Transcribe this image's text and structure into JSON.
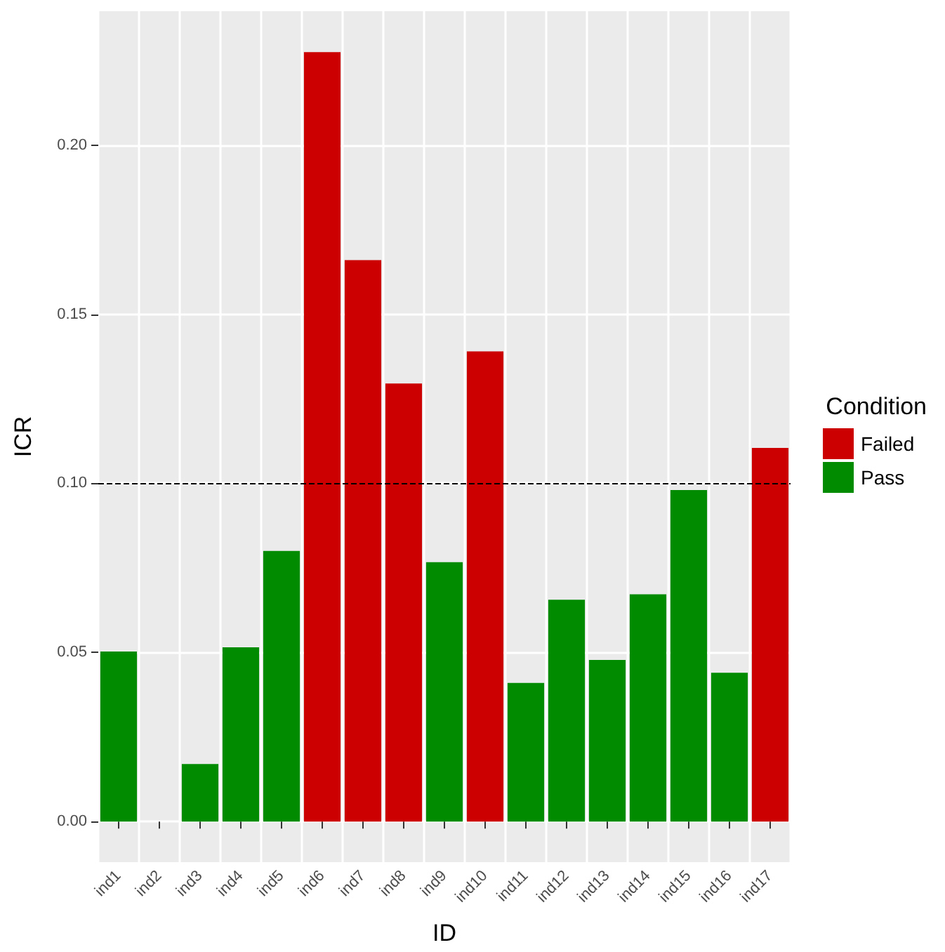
{
  "chart_data": {
    "type": "bar",
    "xlabel": "ID",
    "ylabel": "ICR",
    "legend_title": "Condition",
    "categories": [
      "ind1",
      "ind2",
      "ind3",
      "ind4",
      "ind5",
      "ind6",
      "ind7",
      "ind8",
      "ind9",
      "ind10",
      "ind11",
      "ind12",
      "ind13",
      "ind14",
      "ind15",
      "ind16",
      "ind17"
    ],
    "series": [
      {
        "name": "Failed",
        "color": "#cc0000",
        "values": [
          null,
          null,
          null,
          null,
          null,
          0.2275,
          0.166,
          0.1295,
          null,
          0.139,
          null,
          null,
          null,
          null,
          null,
          null,
          0.1105
        ]
      },
      {
        "name": "Pass",
        "color": "#008b00",
        "values": [
          0.0503,
          0,
          0.017,
          0.0515,
          0.08,
          null,
          null,
          null,
          0.0767,
          null,
          0.041,
          0.0656,
          0.0478,
          0.0672,
          0.098,
          0.044,
          null
        ]
      }
    ],
    "ylim": [
      -0.012,
      0.2396
    ],
    "yticks": [
      {
        "value": 0,
        "label": "0.00"
      },
      {
        "value": 0.05,
        "label": "0.05"
      },
      {
        "value": 0.1,
        "label": "0.10"
      },
      {
        "value": 0.15,
        "label": "0.15"
      },
      {
        "value": 0.2,
        "label": "0.20"
      }
    ],
    "ref_lines": [
      {
        "axis": "y",
        "value": 0.1,
        "color": "#000000",
        "line_style": "dashed"
      }
    ],
    "grid": true,
    "legend": "right"
  }
}
